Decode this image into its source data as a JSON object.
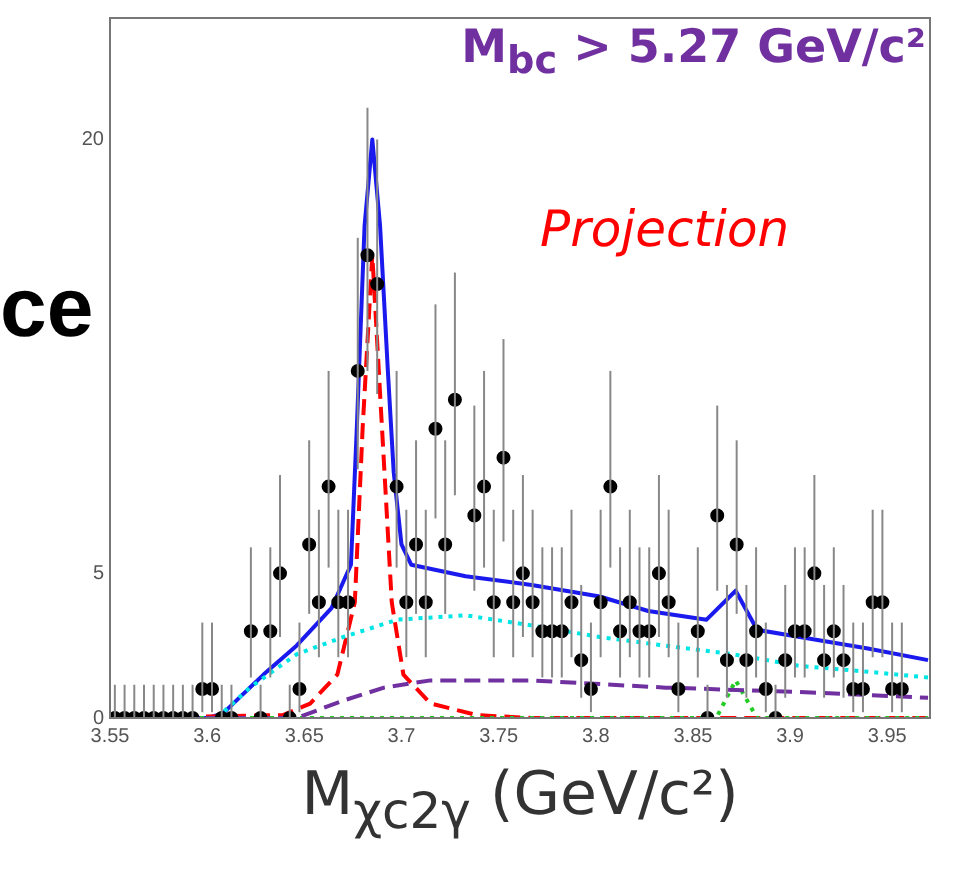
{
  "chart_data": {
    "type": "scatter",
    "xlabel": "M$_{χc2γ}$ (GeV/c²)",
    "annotations": [
      "M$_{bc}$ > 5.27 GeV/c²",
      "Projection",
      "ce"
    ],
    "xlim": [
      3.55,
      3.972
    ],
    "xticks": [
      3.55,
      3.6,
      3.65,
      3.7,
      3.75,
      3.8,
      3.85,
      3.9,
      3.95
    ],
    "ylim": [
      0,
      24.2
    ],
    "yticks": [
      0,
      5,
      20
    ],
    "grid": false,
    "legend": false,
    "series": [
      {
        "type": "scatter",
        "color": "#000000",
        "marker": "circle",
        "x": [
          3.5525,
          3.5575,
          3.5625,
          3.5675,
          3.5725,
          3.5775,
          3.5825,
          3.5875,
          3.5925,
          3.5975,
          3.6025,
          3.6075,
          3.6125,
          3.6225,
          3.6275,
          3.6325,
          3.6375,
          3.6425,
          3.6475,
          3.6525,
          3.6575,
          3.6625,
          3.6675,
          3.6725,
          3.6775,
          3.6825,
          3.6875,
          3.6975,
          3.7025,
          3.7075,
          3.7125,
          3.7175,
          3.7225,
          3.7275,
          3.7375,
          3.7425,
          3.7475,
          3.7525,
          3.7575,
          3.7625,
          3.7675,
          3.7725,
          3.7775,
          3.7825,
          3.7875,
          3.7925,
          3.7975,
          3.8025,
          3.8075,
          3.8125,
          3.8175,
          3.8225,
          3.8275,
          3.8325,
          3.8375,
          3.8425,
          3.8525,
          3.8575,
          3.8625,
          3.8675,
          3.8725,
          3.8775,
          3.8825,
          3.8875,
          3.8925,
          3.8975,
          3.9025,
          3.9075,
          3.9125,
          3.9175,
          3.9225,
          3.9275,
          3.9325,
          3.9375,
          3.9425,
          3.9475,
          3.9525,
          3.9575
        ],
        "values": [
          0,
          0,
          0,
          0,
          0,
          0,
          0,
          0,
          0,
          1,
          1,
          0,
          0,
          3,
          0,
          3,
          5,
          0,
          1,
          6,
          4,
          8,
          4,
          4,
          12,
          16,
          15,
          8,
          4,
          6,
          4,
          10,
          6,
          11,
          7,
          8,
          4,
          9,
          4,
          5,
          4,
          3,
          3,
          3,
          4,
          2,
          1,
          4,
          8,
          3,
          4,
          3,
          3,
          5,
          4,
          1,
          3,
          0,
          7,
          2,
          6,
          2,
          3,
          1,
          0,
          2,
          3,
          3,
          5,
          2,
          3,
          2,
          1,
          1,
          4,
          4,
          1,
          1
        ],
        "errors": [
          [
            0,
            1.15
          ],
          [
            0,
            1.15
          ],
          [
            0,
            1.15
          ],
          [
            0,
            1.15
          ],
          [
            0,
            1.15
          ],
          [
            0,
            1.15
          ],
          [
            0,
            1.15
          ],
          [
            0,
            1.15
          ],
          [
            0,
            1.15
          ],
          [
            0.2,
            3.3
          ],
          [
            0.2,
            3.3
          ],
          [
            0,
            1.15
          ],
          [
            0,
            1.15
          ],
          [
            1.4,
            5.9
          ],
          [
            0,
            1.15
          ],
          [
            1.4,
            5.9
          ],
          [
            2.8,
            8.4
          ],
          [
            0,
            1.15
          ],
          [
            0.2,
            3.3
          ],
          [
            3.6,
            9.6
          ],
          [
            2.1,
            7.2
          ],
          [
            5.2,
            12
          ],
          [
            2.1,
            7.2
          ],
          [
            2.1,
            7.2
          ],
          [
            8.6,
            16.6
          ],
          [
            12,
            21.1
          ],
          [
            11.2,
            20
          ],
          [
            5.2,
            12
          ],
          [
            2.1,
            7.2
          ],
          [
            3.6,
            9.6
          ],
          [
            2.1,
            7.2
          ],
          [
            6.9,
            14.3
          ],
          [
            3.6,
            9.6
          ],
          [
            7.7,
            15.4
          ],
          [
            4.4,
            10.8
          ],
          [
            5.2,
            12
          ],
          [
            2.1,
            7.2
          ],
          [
            6.1,
            13.1
          ],
          [
            2.1,
            7.2
          ],
          [
            2.8,
            8.4
          ],
          [
            2.1,
            7.2
          ],
          [
            1.4,
            5.9
          ],
          [
            1.4,
            5.9
          ],
          [
            1.4,
            5.9
          ],
          [
            2.1,
            7.2
          ],
          [
            0.7,
            4.6
          ],
          [
            0.2,
            3.3
          ],
          [
            2.1,
            7.2
          ],
          [
            5.2,
            12
          ],
          [
            1.4,
            5.9
          ],
          [
            2.1,
            7.2
          ],
          [
            1.4,
            5.9
          ],
          [
            1.4,
            5.9
          ],
          [
            2.8,
            8.4
          ],
          [
            2.1,
            7.2
          ],
          [
            0.2,
            3.3
          ],
          [
            1.4,
            5.9
          ],
          [
            0,
            1.15
          ],
          [
            4.4,
            10.8
          ],
          [
            0.7,
            4.6
          ],
          [
            3.6,
            9.6
          ],
          [
            0.7,
            4.6
          ],
          [
            1.4,
            5.9
          ],
          [
            0.2,
            3.3
          ],
          [
            0,
            1.15
          ],
          [
            0.7,
            4.6
          ],
          [
            1.4,
            5.9
          ],
          [
            1.4,
            5.9
          ],
          [
            2.8,
            8.4
          ],
          [
            0.7,
            4.6
          ],
          [
            1.4,
            5.9
          ],
          [
            0.7,
            4.6
          ],
          [
            0.2,
            3.3
          ],
          [
            0.2,
            3.3
          ],
          [
            2.1,
            7.2
          ],
          [
            2.1,
            7.2
          ],
          [
            0.2,
            3.3
          ],
          [
            0.2,
            3.3
          ]
        ]
      },
      {
        "type": "line",
        "color": "#00e5e5",
        "marker": "none",
        "line_style": "dotted",
        "x": [
          3.605,
          3.622,
          3.646,
          3.67,
          3.698,
          3.733,
          3.767,
          3.802,
          3.836,
          3.871,
          3.905,
          3.94,
          3.971
        ],
        "values": [
          0,
          1.05,
          2.2,
          2.8,
          3.4,
          3.55,
          3.2,
          2.8,
          2.5,
          2.2,
          1.8,
          1.6,
          1.4
        ]
      },
      {
        "type": "line",
        "color": "#7030a0",
        "marker": "none",
        "line_style": "dashed",
        "x": [
          3.55,
          3.646,
          3.67,
          3.691,
          3.715,
          3.767,
          3.836,
          3.905,
          3.971
        ],
        "values": [
          0,
          0,
          0.6,
          1.05,
          1.3,
          1.3,
          1.05,
          0.9,
          0.7
        ]
      },
      {
        "type": "line",
        "color": "#22cc22",
        "marker": "none",
        "line_style": "dotted",
        "x": [
          3.55,
          3.862,
          3.872,
          3.883,
          3.971
        ],
        "values": [
          0,
          0,
          1.3,
          0,
          0
        ]
      },
      {
        "type": "line",
        "color": "#ff0000",
        "marker": "none",
        "line_style": "dashed",
        "x": [
          3.55,
          3.639,
          3.653,
          3.667,
          3.676,
          3.68,
          3.685,
          3.69,
          3.695,
          3.701,
          3.715,
          3.739,
          3.767,
          3.971
        ],
        "values": [
          0,
          0.1,
          0.5,
          1.5,
          4,
          10,
          16,
          10,
          4,
          1.5,
          0.5,
          0.1,
          0,
          0
        ]
      },
      {
        "type": "line",
        "color": "#1a1aee",
        "marker": "none",
        "line_style": "solid",
        "x": [
          3.55,
          3.6,
          3.608,
          3.629,
          3.646,
          3.664,
          3.674,
          3.677,
          3.681,
          3.685,
          3.689,
          3.693,
          3.696,
          3.7,
          3.705,
          3.733,
          3.767,
          3.802,
          3.827,
          3.857,
          3.872,
          3.883,
          3.905,
          3.94,
          3.971
        ],
        "values": [
          0,
          0,
          0.15,
          1.5,
          2.5,
          3.8,
          5.3,
          10,
          17,
          20,
          17,
          12,
          8.5,
          6,
          5.3,
          4.9,
          4.6,
          4.2,
          3.7,
          3.4,
          4.4,
          3.05,
          2.8,
          2.4,
          2.0
        ]
      }
    ]
  }
}
